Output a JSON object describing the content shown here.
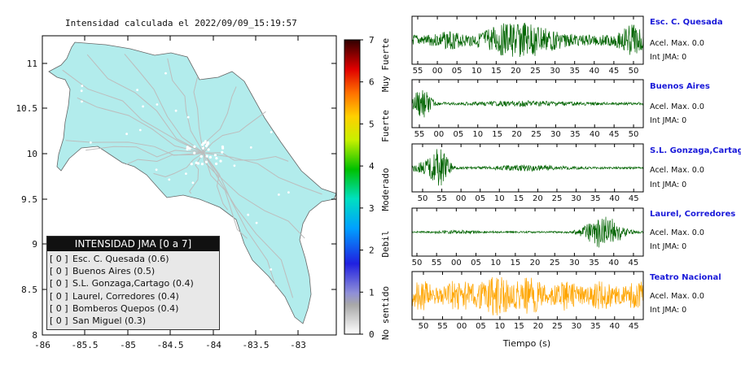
{
  "map": {
    "title": "Intensidad calculada el 2022/09/09_15:19:57",
    "x_ticks": [
      "-86",
      "-85.5",
      "-85",
      "-84.5",
      "-84",
      "-83.5",
      "-83"
    ],
    "y_ticks": [
      "11",
      "10.5",
      "10",
      "9.5",
      "9",
      "8.5",
      "8"
    ],
    "land_color": "#b2ecec",
    "road_color": "#bdbdbd"
  },
  "legend": {
    "title": "INTENSIDAD JMA [0 a 7]",
    "items": [
      {
        "level": "[ 0 ]",
        "label": "Esc. C. Quesada (0.6)"
      },
      {
        "level": "[ 0 ]",
        "label": "Buenos Aires (0.5)"
      },
      {
        "level": "[ 0 ]",
        "label": "S.L. Gonzaga,Cartago (0.4)"
      },
      {
        "level": "[ 0 ]",
        "label": "Laurel, Corredores (0.4)"
      },
      {
        "level": "[ 0 ]",
        "label": "Bomberos Quepos (0.4)"
      },
      {
        "level": "[ 0 ]",
        "label": "San Miguel (0.3)"
      }
    ]
  },
  "colorbar": {
    "ticks": [
      "0",
      "1",
      "2",
      "3",
      "4",
      "5",
      "6",
      "7"
    ],
    "labels": [
      "No sentido",
      "Debil",
      "Moderado",
      "Fuerte",
      "Muy Fuerte"
    ]
  },
  "xlabel": "Tiempo (s)",
  "stations": [
    {
      "name": "Esc. C. Quesada",
      "acel": "Acel. Max. 0.0",
      "int": "Int JMA: 0",
      "color": "#006400",
      "ticks": [
        "55",
        "00",
        "05",
        "10",
        "15",
        "20",
        "25",
        "30",
        "35",
        "40",
        "45",
        "50"
      ]
    },
    {
      "name": "Buenos Aires",
      "acel": "Acel. Max. 0.0",
      "int": "Int JMA: 0",
      "color": "#006400",
      "ticks": [
        "55",
        "00",
        "05",
        "10",
        "15",
        "20",
        "25",
        "30",
        "35",
        "40",
        "45",
        "50"
      ]
    },
    {
      "name": "S.L. Gonzaga,Cartago",
      "acel": "Acel. Max. 0.0",
      "int": "Int JMA: 0",
      "color": "#006400",
      "ticks": [
        "50",
        "55",
        "00",
        "05",
        "10",
        "15",
        "20",
        "25",
        "30",
        "35",
        "40",
        "45"
      ]
    },
    {
      "name": "Laurel, Corredores",
      "acel": "Acel. Max. 0.0",
      "int": "Int JMA: 0",
      "color": "#006400",
      "ticks": [
        "50",
        "55",
        "00",
        "05",
        "10",
        "15",
        "20",
        "25",
        "30",
        "35",
        "40",
        "45"
      ]
    },
    {
      "name": "Teatro Nacional",
      "acel": "Acel. Max. 0.0",
      "int": "Int JMA: 0",
      "color": "#ffa500",
      "ticks": [
        "50",
        "55",
        "00",
        "05",
        "10",
        "15",
        "20",
        "25",
        "30",
        "35",
        "40",
        "45"
      ]
    }
  ],
  "chart_data": [
    {
      "type": "heatmap",
      "title": "Intensidad calculada el 2022/09/09_15:19:57",
      "xlim": [
        -86,
        -82.6
      ],
      "ylim": [
        8,
        11.4
      ],
      "colorbar_range": [
        0,
        7
      ],
      "values": "Costa Rica map, all areas intensity 0 (No sentido)"
    },
    {
      "type": "line",
      "xlabel": "Tiempo (s)",
      "series": [
        {
          "name": "Esc. C. Quesada",
          "intensity": 0,
          "acel_max": 0.0
        },
        {
          "name": "Buenos Aires",
          "intensity": 0,
          "acel_max": 0.0
        },
        {
          "name": "S.L. Gonzaga,Cartago",
          "intensity": 0,
          "acel_max": 0.0
        },
        {
          "name": "Laurel, Corredores",
          "intensity": 0,
          "acel_max": 0.0
        },
        {
          "name": "Teatro Nacional",
          "intensity": 0,
          "acel_max": 0.0
        }
      ]
    }
  ]
}
